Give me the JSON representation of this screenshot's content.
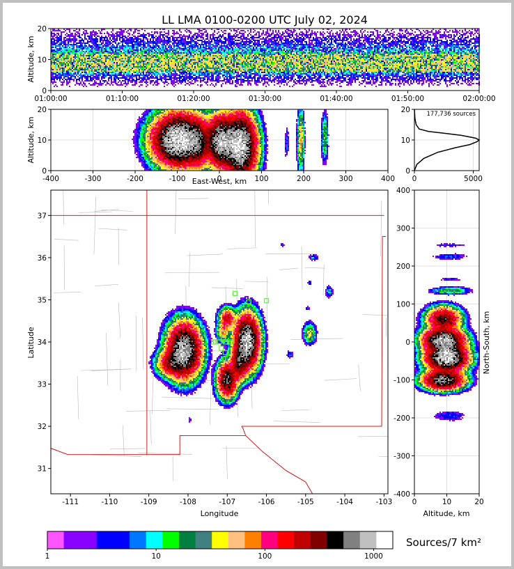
{
  "title": "LL LMA 0100-0200 UTC July 02, 2024",
  "colorbar_label": "Sources/7 km²",
  "chart_data": [
    {
      "id": "alt-time",
      "type": "heatmap",
      "xlabel": "",
      "ylabel": "Altitude, km",
      "x_ticks": [
        "01:00:00",
        "01:10:00",
        "01:20:00",
        "01:30:00",
        "01:40:00",
        "01:50:00",
        "02:00:00"
      ],
      "ylim": [
        0,
        20
      ],
      "y_ticks": [
        0,
        10,
        20
      ],
      "core_altitude_km": [
        6,
        12
      ]
    },
    {
      "id": "alt-ew",
      "type": "heatmap",
      "xlabel": "East-West, km",
      "ylabel": "Altitude, km",
      "xlim": [
        -400,
        400
      ],
      "x_ticks": [
        -400,
        -300,
        -200,
        -100,
        0,
        100,
        200,
        300,
        400
      ],
      "ylim": [
        0,
        20
      ],
      "y_ticks": [
        0,
        10,
        20
      ],
      "clusters": [
        {
          "x": -95,
          "y": 10,
          "sx": 30,
          "sy": 4,
          "peak": 1200
        },
        {
          "x": -50,
          "y": 9,
          "sx": 12,
          "sy": 4,
          "peak": 300
        },
        {
          "x": 5,
          "y": 9.5,
          "sx": 18,
          "sy": 4,
          "peak": 900
        },
        {
          "x": 50,
          "y": 8,
          "sx": 18,
          "sy": 5,
          "peak": 1100
        },
        {
          "x": 193,
          "y": 10,
          "sx": 4,
          "sy": 5,
          "peak": 60
        },
        {
          "x": 250,
          "y": 11,
          "sx": 4,
          "sy": 4,
          "peak": 25
        },
        {
          "x": 160,
          "y": 9,
          "sx": 3,
          "sy": 3,
          "peak": 6
        }
      ]
    },
    {
      "id": "histogram",
      "type": "line",
      "annotation": "177,736 sources",
      "xlim": [
        0,
        5500
      ],
      "x_ticks": [
        0,
        5000
      ],
      "ylim": [
        0,
        20
      ],
      "y_ticks": [
        0,
        10,
        20
      ],
      "x": [
        0,
        200,
        800,
        2000,
        3500,
        4700,
        5300,
        5500,
        5200,
        4000,
        2500,
        1200,
        400,
        150,
        50,
        0
      ],
      "y": [
        0,
        2,
        4,
        6,
        7.5,
        8.5,
        9.4,
        10,
        10.6,
        11.5,
        12.2,
        12.8,
        13.6,
        15,
        17,
        20
      ]
    },
    {
      "id": "plan-view",
      "type": "heatmap",
      "xlabel": "Longitude",
      "ylabel": "Latitude",
      "xlim": [
        -111.5,
        -102.9
      ],
      "x_ticks": [
        -111,
        -110,
        -109,
        -108,
        -107,
        -106,
        -105,
        -104,
        -103
      ],
      "ylim": [
        30.4,
        37.6
      ],
      "y_ticks": [
        31,
        32,
        33,
        34,
        35,
        36,
        37
      ],
      "clusters": [
        {
          "x": -108.1,
          "y": 33.8,
          "sx": 0.2,
          "sy": 0.3,
          "peak": 900
        },
        {
          "x": -108.4,
          "y": 33.5,
          "sx": 0.18,
          "sy": 0.15,
          "peak": 300
        },
        {
          "x": -107.0,
          "y": 33.1,
          "sx": 0.12,
          "sy": 0.2,
          "peak": 500
        },
        {
          "x": -106.5,
          "y": 34.0,
          "sx": 0.15,
          "sy": 0.3,
          "peak": 1000
        },
        {
          "x": -106.7,
          "y": 33.5,
          "sx": 0.1,
          "sy": 0.2,
          "peak": 400
        },
        {
          "x": -107.0,
          "y": 34.55,
          "sx": 0.1,
          "sy": 0.12,
          "peak": 200
        },
        {
          "x": -107.1,
          "y": 34.25,
          "sx": 0.08,
          "sy": 0.12,
          "peak": 80
        },
        {
          "x": -104.9,
          "y": 34.2,
          "sx": 0.08,
          "sy": 0.12,
          "peak": 40
        },
        {
          "x": -105.4,
          "y": 33.7,
          "sx": 0.05,
          "sy": 0.06,
          "peak": 6
        },
        {
          "x": -104.4,
          "y": 35.2,
          "sx": 0.05,
          "sy": 0.08,
          "peak": 10
        },
        {
          "x": -104.8,
          "y": 36.0,
          "sx": 0.07,
          "sy": 0.04,
          "peak": 8
        },
        {
          "x": -104.9,
          "y": 35.4,
          "sx": 0.04,
          "sy": 0.04,
          "peak": 4
        },
        {
          "x": -104.95,
          "y": 34.8,
          "sx": 0.04,
          "sy": 0.04,
          "peak": 4
        },
        {
          "x": -108.3,
          "y": 34.4,
          "sx": 0.05,
          "sy": 0.04,
          "peak": 4
        },
        {
          "x": -108.55,
          "y": 34.55,
          "sx": 0.03,
          "sy": 0.03,
          "peak": 3
        },
        {
          "x": -107.95,
          "y": 32.15,
          "sx": 0.03,
          "sy": 0.05,
          "peak": 3
        },
        {
          "x": -105.6,
          "y": 36.3,
          "sx": 0.05,
          "sy": 0.03,
          "peak": 3
        }
      ],
      "stations": [
        {
          "lon": -107.3,
          "lat": 34.0
        },
        {
          "lon": -107.2,
          "lat": 34.0
        },
        {
          "lon": -107.1,
          "lat": 34.1
        },
        {
          "lon": -107.05,
          "lat": 34.0
        },
        {
          "lon": -107.15,
          "lat": 33.85
        },
        {
          "lon": -107.05,
          "lat": 33.75
        },
        {
          "lon": -107.1,
          "lat": 33.6
        },
        {
          "lon": -107.35,
          "lat": 34.0
        },
        {
          "lon": -106.9,
          "lat": 34.0
        },
        {
          "lon": -106.8,
          "lat": 35.15
        },
        {
          "lon": -106.45,
          "lat": 34.95
        },
        {
          "lon": -106.0,
          "lat": 34.98
        },
        {
          "lon": -107.1,
          "lat": 34.2
        }
      ],
      "state_borders": [
        [
          [
            -111.5,
            37.0
          ],
          [
            -103.0,
            37.0
          ]
        ],
        [
          [
            -109.05,
            37.6
          ],
          [
            -109.05,
            31.33
          ]
        ],
        [
          [
            -111.5,
            31.48
          ],
          [
            -111.07,
            31.33
          ],
          [
            -108.21,
            31.33
          ],
          [
            -108.21,
            31.78
          ],
          [
            -106.53,
            31.78
          ],
          [
            -106.6,
            31.95
          ],
          [
            -106.63,
            32.0
          ],
          [
            -103.06,
            32.0
          ],
          [
            -103.04,
            36.5
          ],
          [
            -102.95,
            36.5
          ]
        ],
        [
          [
            -106.53,
            31.78
          ],
          [
            -106.1,
            31.4
          ],
          [
            -105.5,
            30.95
          ],
          [
            -105.0,
            30.68
          ],
          [
            -104.7,
            30.2
          ]
        ]
      ]
    },
    {
      "id": "alt-ns",
      "type": "heatmap",
      "xlabel": "Altitude, km",
      "ylabel": "North-South, km",
      "xlim": [
        0,
        20
      ],
      "x_ticks": [
        0,
        10,
        20
      ],
      "ylim": [
        -400,
        400
      ],
      "y_ticks": [
        -400,
        -300,
        -200,
        -100,
        0,
        100,
        200,
        300,
        400
      ],
      "clusters": [
        {
          "x": 9,
          "y": 60,
          "sx": 2.5,
          "sy": 15,
          "peak": 400
        },
        {
          "x": 9,
          "y": 5,
          "sx": 3,
          "sy": 15,
          "peak": 900
        },
        {
          "x": 10,
          "y": -40,
          "sx": 3,
          "sy": 18,
          "peak": 1100
        },
        {
          "x": 9,
          "y": -100,
          "sx": 3,
          "sy": 12,
          "peak": 700
        },
        {
          "x": 11,
          "y": 135,
          "sx": 3,
          "sy": 5,
          "peak": 25
        },
        {
          "x": 11,
          "y": 225,
          "sx": 3,
          "sy": 5,
          "peak": 6
        },
        {
          "x": 11,
          "y": 255,
          "sx": 3,
          "sy": 3,
          "peak": 4
        },
        {
          "x": 11,
          "y": 165,
          "sx": 2,
          "sy": 3,
          "peak": 4
        },
        {
          "x": 11,
          "y": -195,
          "sx": 3,
          "sy": 8,
          "peak": 5
        }
      ]
    },
    {
      "id": "colorbar",
      "type": "table",
      "scale": "log",
      "range": [
        1,
        1500
      ],
      "tick_labels": [
        "1",
        "10",
        "100",
        "1000"
      ],
      "tick_values": [
        1,
        10,
        100,
        1000
      ],
      "colors": [
        "#ff55ff",
        "#8800ff",
        "#8800ff",
        "#0000ff",
        "#0000ff",
        "#0077ff",
        "#00ffff",
        "#00ff00",
        "#008040",
        "#408080",
        "#ffff00",
        "#ffc080",
        "#ff8000",
        "#ff0080",
        "#ff0000",
        "#c00000",
        "#800000",
        "#000000",
        "#808080",
        "#c0c0c0",
        "#ffffff"
      ]
    }
  ]
}
